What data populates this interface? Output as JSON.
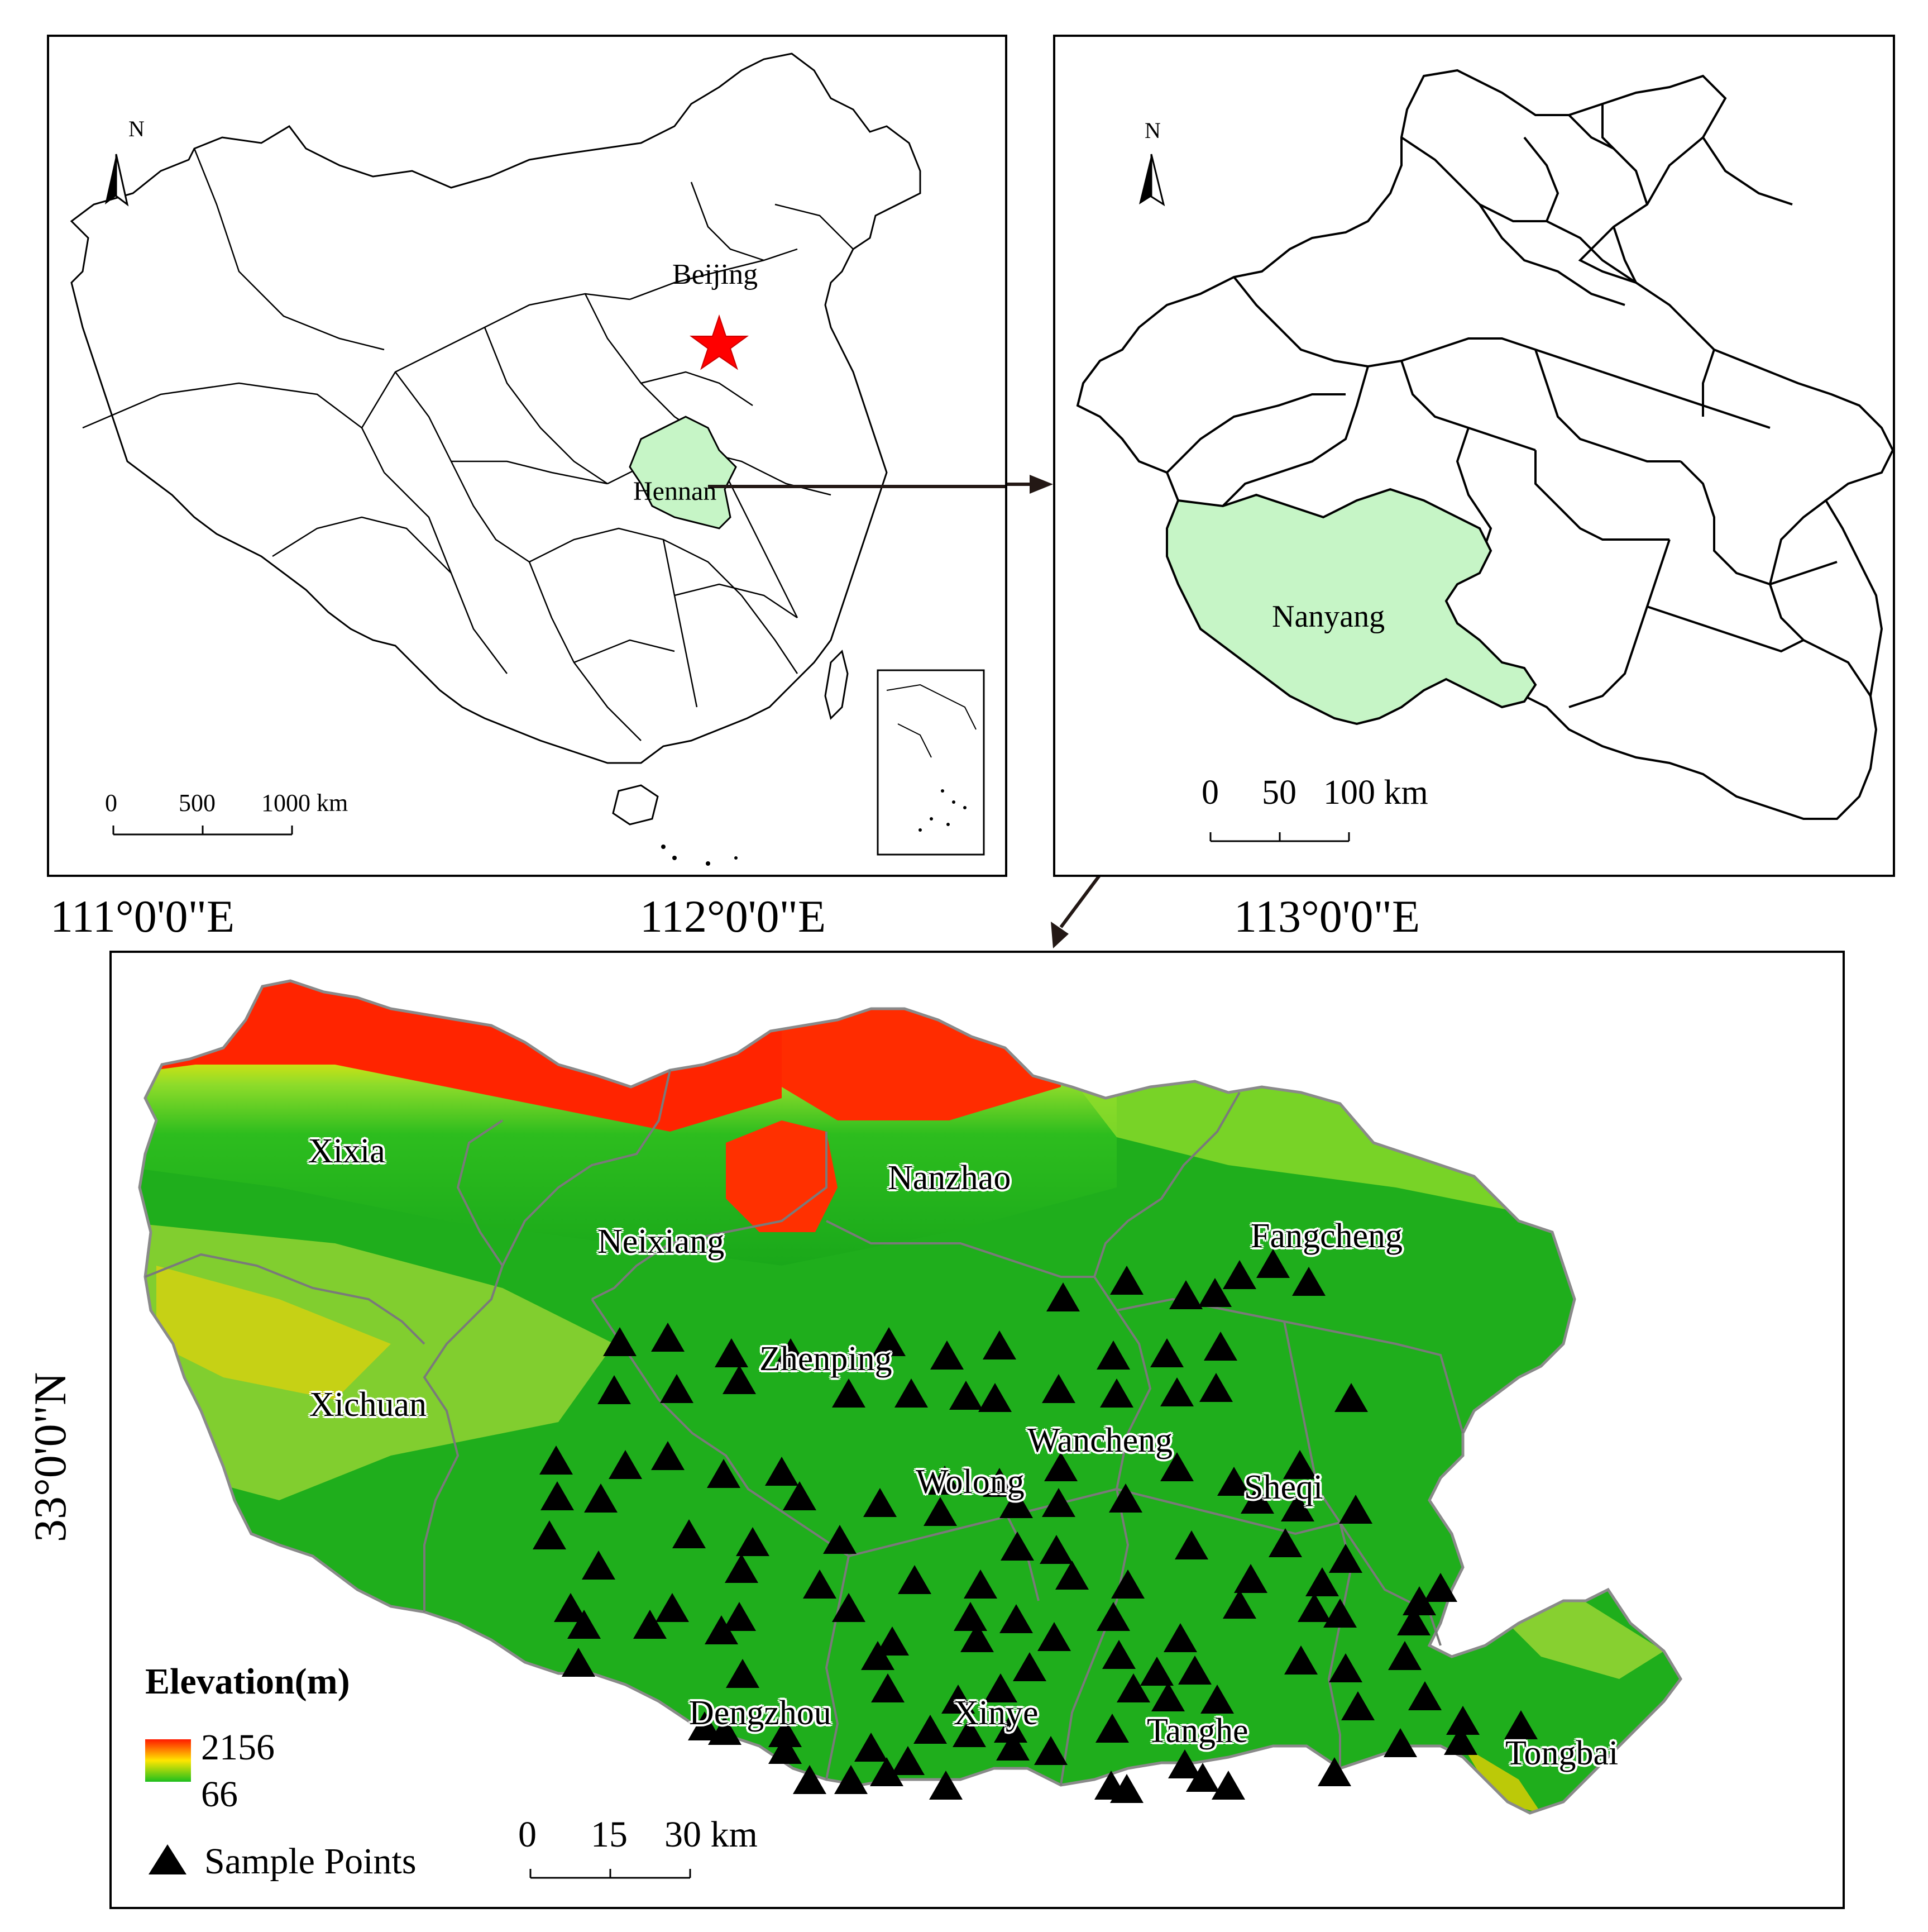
{
  "china_map": {
    "north_label": "N",
    "capital_label": "Beijing",
    "province_label": "Hennan",
    "scale": {
      "ticks": [
        "0",
        "500",
        "1000 km"
      ]
    },
    "colors": {
      "highlight": "#c6f5c6",
      "capital_star": "#ff0000"
    }
  },
  "henan_map": {
    "north_label": "N",
    "city_label": "Nanyang",
    "scale": {
      "ticks": [
        "0",
        "50",
        "100 km"
      ]
    },
    "colors": {
      "highlight": "#c6f5c6"
    }
  },
  "nanyang_map": {
    "longitude_labels": [
      "111°0'0\"E",
      "112°0'0\"E",
      "113°0'0\"E"
    ],
    "latitude_label": "33°0'0\"N",
    "county_labels": [
      "Xixia",
      "Neixiang",
      "Nanzhao",
      "Fangcheng",
      "Zhenping",
      "Xichuan",
      "Wancheng",
      "Wolong",
      "Sheqi",
      "Dengzhou",
      "Xinye",
      "Tanghe",
      "Tongbai"
    ],
    "legend": {
      "elevation_title": "Elevation(m)",
      "elevation_max": "2156",
      "elevation_min": "66",
      "sample_points_label": "Sample Points",
      "colors": {
        "high": "#ff1a00",
        "mid": "#ffe600",
        "low": "#1dbf1d"
      }
    },
    "scale": {
      "ticks": [
        "0",
        "15",
        "30 km"
      ]
    }
  }
}
